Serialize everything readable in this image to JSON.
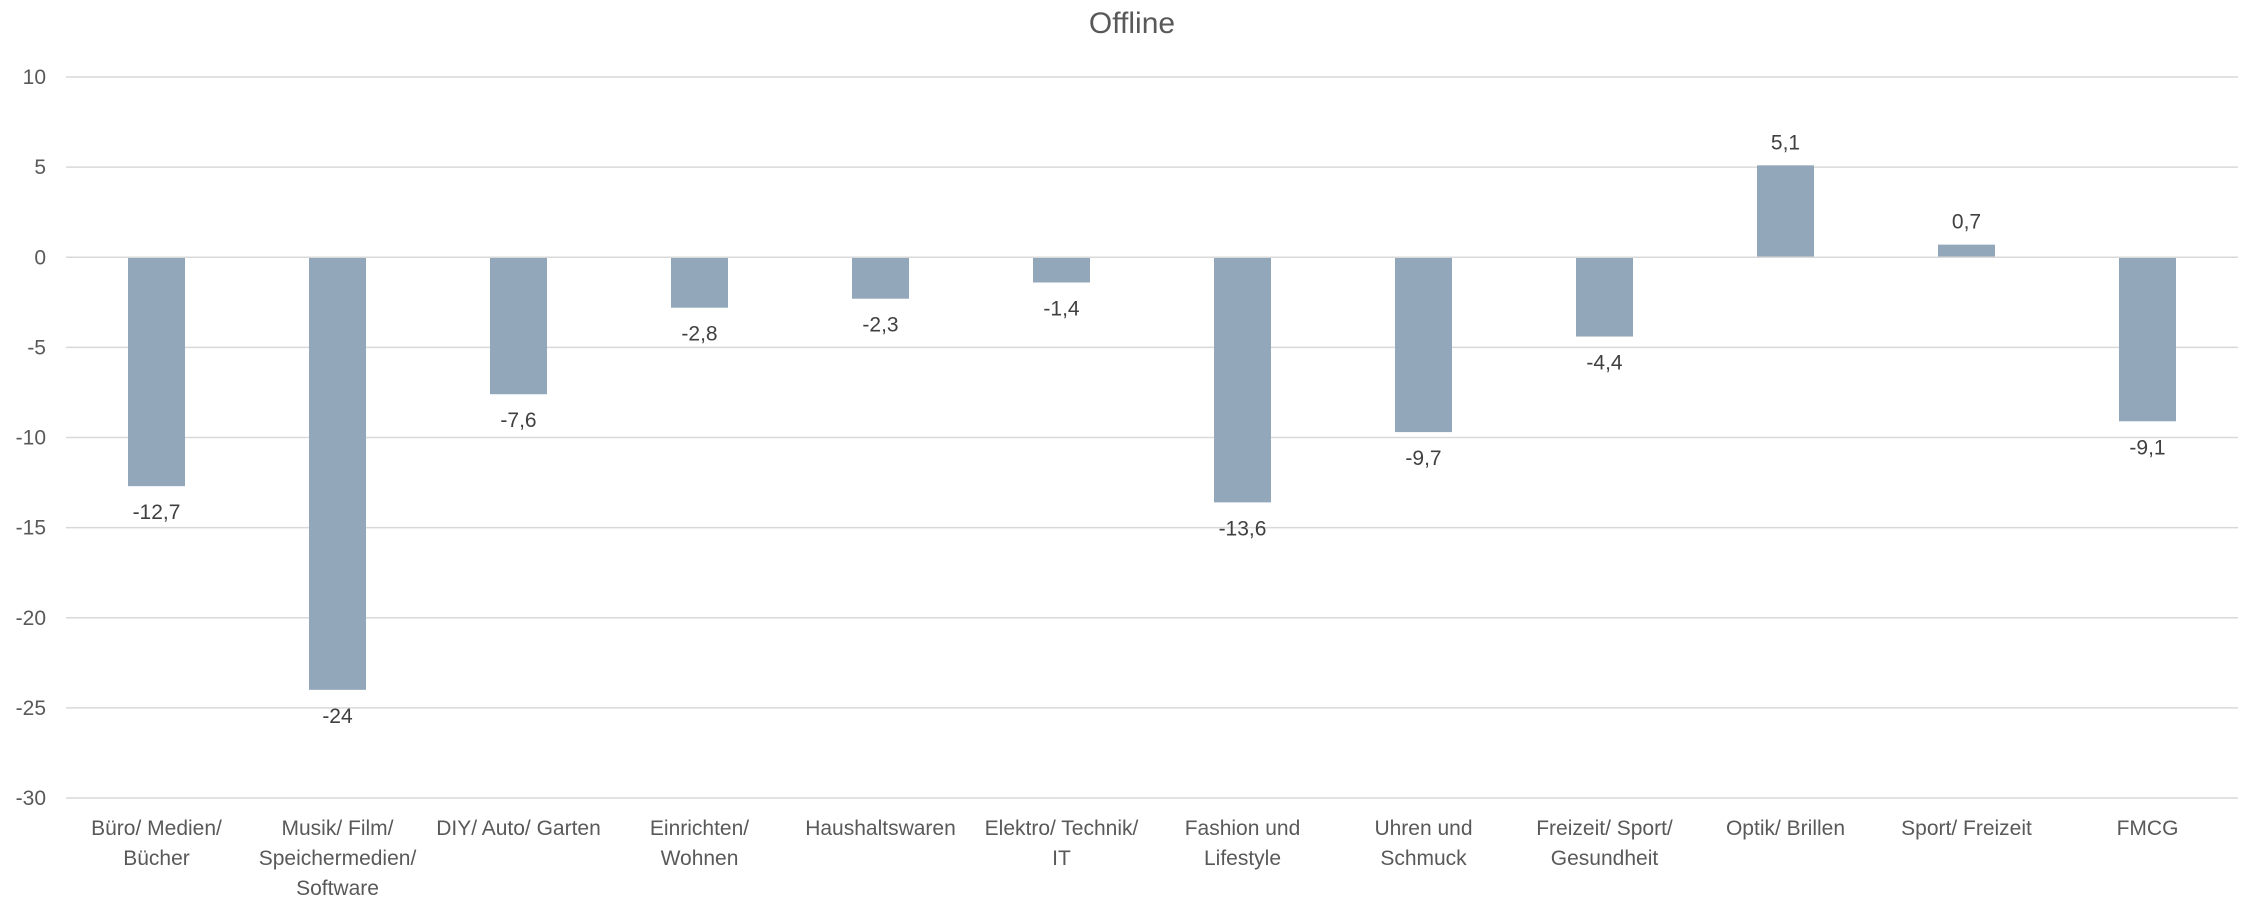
{
  "chart_data": {
    "type": "bar",
    "title": "Offline",
    "xlabel": "",
    "ylabel": "",
    "ylim": [
      -30,
      10
    ],
    "ytick_step": 5,
    "yticks": [
      "10",
      "5",
      "0",
      "-5",
      "-10",
      "-15",
      "-20",
      "-25",
      "-30"
    ],
    "grid": true,
    "legend": "none",
    "bar_color": "#93a7ba",
    "categories": [
      [
        "Büro/ Medien/",
        "Bücher"
      ],
      [
        "Musik/ Film/",
        "Speichermedien/",
        "Software"
      ],
      [
        "DIY/ Auto/ Garten"
      ],
      [
        "Einrichten/",
        "Wohnen"
      ],
      [
        "Haushaltswaren"
      ],
      [
        "Elektro/ Technik/",
        "IT"
      ],
      [
        "Fashion und",
        "Lifestyle"
      ],
      [
        "Uhren und",
        "Schmuck"
      ],
      [
        "Freizeit/ Sport/",
        "Gesundheit"
      ],
      [
        "Optik/ Brillen"
      ],
      [
        "Sport/ Freizeit"
      ],
      [
        "FMCG"
      ]
    ],
    "values": [
      -12.7,
      -24,
      -7.6,
      -2.8,
      -2.3,
      -1.4,
      -13.6,
      -9.7,
      -4.4,
      5.1,
      0.7,
      -9.1
    ],
    "data_labels": [
      "-12,7",
      "-24",
      "-7,6",
      "-2,8",
      "-2,3",
      "-1,4",
      "-13,6",
      "-9,7",
      "-4,4",
      "5,1",
      "0,7",
      "-9,1"
    ]
  }
}
